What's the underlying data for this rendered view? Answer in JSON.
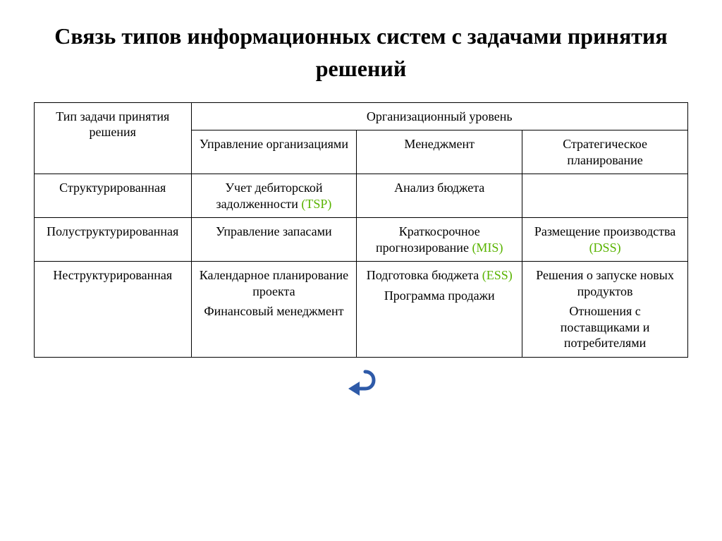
{
  "title": "Связь типов информационных систем с задачами принятия решений",
  "table": {
    "header_rowcol": "Тип задачи принятия решения",
    "header_span": "Организационный уровень",
    "subheaders": [
      "Управление организациями",
      "Менеджмент",
      "Стратегическое планирование"
    ],
    "rows": [
      {
        "label": "Структурированная",
        "c1": {
          "lines": [
            {
              "text": "Учет дебиторской задолженности "
            },
            {
              "text": "(TSP)",
              "accent": true
            }
          ]
        },
        "c2": {
          "lines": [
            {
              "text": "Анализ бюджета"
            }
          ]
        },
        "c3": {
          "lines": []
        }
      },
      {
        "label": "Полуструктурированная",
        "c1": {
          "lines": [
            {
              "text": "Управление запасами"
            }
          ]
        },
        "c2": {
          "lines": [
            {
              "text": "Краткосрочное прогнозирование "
            },
            {
              "text": "(MIS)",
              "accent": true
            }
          ]
        },
        "c3": {
          "lines": [
            {
              "text": "Размещение производства "
            },
            {
              "text": "(DSS)",
              "accent": true
            }
          ]
        }
      },
      {
        "label": "Неструктурированная",
        "c1": {
          "blocks": [
            {
              "lines": [
                {
                  "text": "Календарное планирование проекта"
                }
              ]
            },
            {
              "lines": [
                {
                  "text": "Финансовый менеджмент"
                }
              ]
            }
          ]
        },
        "c2": {
          "blocks": [
            {
              "lines": [
                {
                  "text": "Подготовка бюджета "
                },
                {
                  "text": "(ESS)",
                  "accent": true
                }
              ]
            },
            {
              "lines": [
                {
                  "text": "Программа продажи"
                }
              ]
            }
          ]
        },
        "c3": {
          "blocks": [
            {
              "lines": [
                {
                  "text": "Решения о запуске новых продуктов"
                }
              ]
            },
            {
              "lines": [
                {
                  "text": "Отношения с поставщиками и потребителями"
                }
              ]
            }
          ]
        }
      }
    ]
  },
  "style": {
    "accent_color": "#59b300",
    "border_color": "#000000",
    "background": "#ffffff",
    "title_fontsize": 32,
    "cell_fontsize": 18,
    "font_family": "Times New Roman",
    "arrow_color": "#2e5aa8",
    "column_widths_pct": [
      24,
      25.3,
      25.3,
      25.3
    ]
  }
}
